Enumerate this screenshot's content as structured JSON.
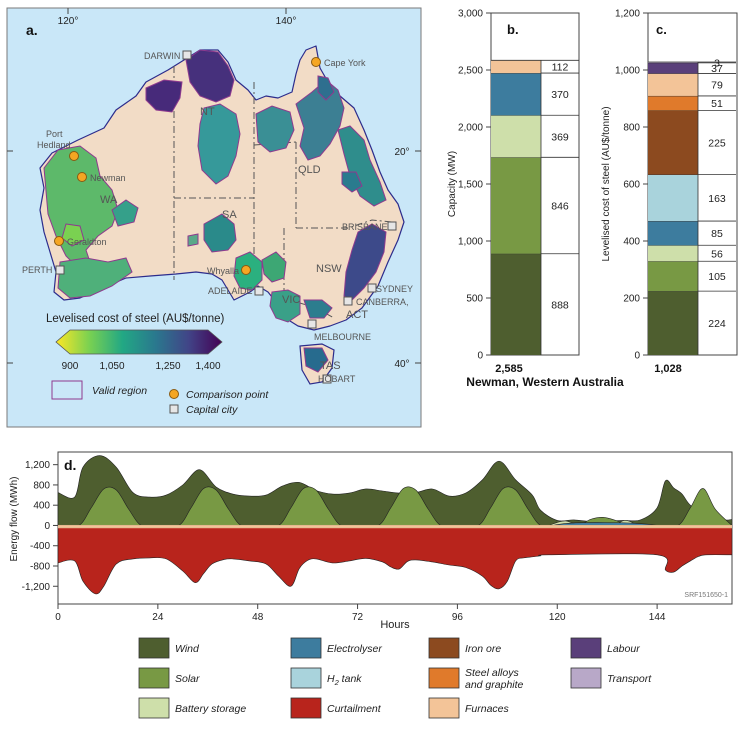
{
  "panels": {
    "a": "a.",
    "b": "b.",
    "c": "c.",
    "d": "d."
  },
  "map": {
    "lon_labels": [
      "120°",
      "140°"
    ],
    "lat_labels": [
      "20°",
      "40°"
    ],
    "region_labels": [
      "NT",
      "QLD",
      "WA",
      "SA",
      "NSW",
      "VIC",
      "TAS",
      "ACT"
    ],
    "cities": [
      "DARWIN",
      "BRISBANE",
      "PERTH",
      "ADELAIDE",
      "SYDNEY",
      "CANBERRA,",
      "MELBOURNE",
      "HOBART"
    ],
    "comparison_points": [
      "Cape York",
      "Port Hedland",
      "Newman",
      "Geraldton",
      "Whyalla"
    ],
    "colorbar": {
      "title": "Levelised cost of steel (AU$/tonne)",
      "ticks": [
        "900",
        "1,050",
        "1,250",
        "1,400"
      ],
      "stops": [
        "#fde725",
        "#7ad151",
        "#22a884",
        "#2a788e",
        "#414487",
        "#440154"
      ]
    },
    "legend": {
      "valid_region": "Valid region",
      "comparison_point": "Comparison point",
      "capital_city": "Capital city"
    },
    "colors": {
      "ocean": "#c9e7f8",
      "land": "#f2dcc6",
      "comparison": "#f5a623",
      "capital": "#e6e6e6"
    }
  },
  "chart_data": [
    {
      "type": "bar",
      "panel": "b",
      "stacked": true,
      "ylabel": "Capacity (MW)",
      "ylim": [
        0,
        3000
      ],
      "yticks": [
        "0",
        "500",
        "1,000",
        "1,500",
        "2,000",
        "2,500",
        "3,000"
      ],
      "total_label": "2,585",
      "segments": [
        {
          "component": "Wind",
          "value": 888,
          "label": "888",
          "color": "#4e5e2f"
        },
        {
          "component": "Solar",
          "value": 846,
          "label": "846",
          "color": "#789944"
        },
        {
          "component": "Battery storage",
          "value": 369,
          "label": "369",
          "color": "#cedfaa"
        },
        {
          "component": "Electrolyser",
          "value": 370,
          "label": "370",
          "color": "#3d7c9e"
        },
        {
          "component": "Furnaces",
          "value": 112,
          "label": "112",
          "color": "#f3c498"
        }
      ]
    },
    {
      "type": "bar",
      "panel": "c",
      "stacked": true,
      "ylabel": "Levelised cost of steel (AU$/tonne)",
      "ylim": [
        0,
        1200
      ],
      "yticks": [
        "0",
        "200",
        "400",
        "600",
        "800",
        "1,000",
        "1,200"
      ],
      "total_label": "1,028",
      "segments": [
        {
          "component": "Wind",
          "value": 224,
          "label": "224",
          "color": "#4e5e2f"
        },
        {
          "component": "Solar",
          "value": 105,
          "label": "105",
          "color": "#789944"
        },
        {
          "component": "Battery storage",
          "value": 56,
          "label": "56",
          "color": "#cedfaa"
        },
        {
          "component": "Electrolyser",
          "value": 85,
          "label": "85",
          "color": "#3d7c9e"
        },
        {
          "component": "H2 tank",
          "value": 163,
          "label": "163",
          "color": "#a9d3dc"
        },
        {
          "component": "Iron ore",
          "value": 225,
          "label": "225",
          "color": "#8c4a1f"
        },
        {
          "component": "Steel alloys and graphite",
          "value": 51,
          "label": "51",
          "color": "#e07a2b"
        },
        {
          "component": "Furnaces",
          "value": 79,
          "label": "79",
          "color": "#f3c498"
        },
        {
          "component": "Labour",
          "value": 37,
          "label": "37",
          "color": "#5a3f7a"
        },
        {
          "component": "Transport",
          "value": 3,
          "label": "3",
          "color": "#b8a8c8"
        }
      ]
    },
    {
      "type": "area",
      "panel": "d",
      "ylabel": "Energy flow (MWh)",
      "xlabel": "Hours",
      "xlim": [
        0,
        162
      ],
      "ylim": [
        -1550,
        1450
      ],
      "xticks": [
        "0",
        "24",
        "48",
        "72",
        "96",
        "120",
        "144"
      ],
      "yticks": [
        "-1,200",
        "-800",
        "-400",
        "0",
        "400",
        "800",
        "1,200"
      ],
      "series": [
        {
          "name": "Wind",
          "color": "#4e5e2f",
          "x": [
            0,
            4,
            6,
            10,
            14,
            18,
            22,
            26,
            30,
            34,
            38,
            42,
            46,
            50,
            54,
            58,
            62,
            66,
            70,
            74,
            78,
            82,
            86,
            90,
            94,
            98,
            102,
            106,
            110,
            114,
            116,
            120,
            124,
            128,
            132,
            136,
            140,
            144,
            146,
            148,
            150,
            152,
            156,
            160,
            162
          ],
          "y": [
            650,
            560,
            1150,
            1380,
            1150,
            650,
            560,
            600,
            800,
            1100,
            760,
            620,
            580,
            600,
            780,
            850,
            690,
            620,
            640,
            720,
            680,
            640,
            650,
            720,
            580,
            640,
            900,
            1270,
            900,
            600,
            300,
            100,
            110,
            80,
            90,
            100,
            110,
            350,
            880,
            740,
            620,
            400,
            200,
            110,
            120
          ]
        },
        {
          "name": "Solar",
          "color": "#789944",
          "x": [
            0,
            5,
            8,
            11,
            14,
            17,
            20,
            24,
            29,
            32,
            35,
            38,
            41,
            44,
            48,
            53,
            56,
            59,
            62,
            65,
            68,
            72,
            77,
            80,
            83,
            86,
            89,
            92,
            96,
            101,
            104,
            107,
            110,
            113,
            116,
            120,
            125,
            128,
            131,
            134,
            137,
            140,
            144,
            149,
            152,
            155,
            158,
            162
          ],
          "y": [
            0,
            0,
            350,
            720,
            700,
            320,
            0,
            0,
            0,
            350,
            730,
            700,
            320,
            0,
            0,
            0,
            350,
            730,
            700,
            320,
            0,
            0,
            0,
            350,
            730,
            700,
            320,
            0,
            0,
            0,
            350,
            730,
            700,
            320,
            0,
            0,
            0,
            120,
            160,
            100,
            0,
            0,
            0,
            0,
            350,
            730,
            320,
            0
          ]
        },
        {
          "name": "Battery storage",
          "color": "#cedfaa",
          "x": [
            118,
            120,
            122,
            124,
            126,
            128,
            130,
            132,
            134,
            136,
            138,
            140,
            142,
            144
          ],
          "y": [
            0,
            60,
            90,
            40,
            0,
            -80,
            -150,
            -120,
            0,
            100,
            60,
            -60,
            -100,
            0
          ]
        },
        {
          "name": "Electrolyser",
          "color": "#3d7c9e",
          "x": [
            0,
            118,
            119,
            144,
            146,
            150,
            152,
            162
          ],
          "y": [
            -560,
            -560,
            0,
            0,
            -380,
            -500,
            -380,
            -200
          ]
        },
        {
          "name": "Curtailment",
          "color": "#b8241c",
          "x": [
            0,
            4,
            6,
            9,
            11,
            14,
            18,
            22,
            26,
            30,
            33,
            35,
            37,
            40,
            42,
            46,
            50,
            53,
            56,
            58,
            60,
            62,
            66,
            70,
            74,
            78,
            80,
            82,
            84,
            86,
            90,
            94,
            98,
            102,
            104,
            106,
            108,
            110,
            112,
            114,
            116,
            118,
            144,
            146,
            148,
            150,
            152,
            154,
            156,
            162
          ],
          "y": [
            -740,
            -700,
            -1100,
            -1350,
            -1200,
            -760,
            -660,
            -640,
            -660,
            -900,
            -1130,
            -950,
            -760,
            -670,
            -660,
            -700,
            -760,
            -1000,
            -1200,
            -850,
            -690,
            -660,
            -740,
            -700,
            -650,
            -720,
            -820,
            -860,
            -710,
            -680,
            -720,
            -780,
            -830,
            -1000,
            -1180,
            -1250,
            -1100,
            -700,
            -640,
            -620,
            -600,
            -580,
            -580,
            -880,
            -920,
            -800,
            -700,
            -610,
            -580,
            -580
          ]
        },
        {
          "name": "Furnaces",
          "color": "#f3c498",
          "x": [
            0,
            162
          ],
          "y": [
            -40,
            -40
          ]
        }
      ],
      "note": "SRF151650-1"
    }
  ],
  "shared_x_label": "Newman, Western Australia",
  "legend": [
    {
      "label": "Wind",
      "color": "#4e5e2f"
    },
    {
      "label": "Electrolyser",
      "color": "#3d7c9e"
    },
    {
      "label": "Iron ore",
      "color": "#8c4a1f"
    },
    {
      "label": "Labour",
      "color": "#5a3f7a"
    },
    {
      "label": "Solar",
      "color": "#789944"
    },
    {
      "label": "H",
      "sub": "2",
      "tail": " tank",
      "color": "#a9d3dc"
    },
    {
      "label": "Steel alloys",
      "line2": "and graphite",
      "color": "#e07a2b"
    },
    {
      "label": "Transport",
      "color": "#b8a8c8"
    },
    {
      "label": "Battery storage",
      "color": "#cedfaa"
    },
    {
      "label": "Curtailment",
      "color": "#b8241c"
    },
    {
      "label": "Furnaces",
      "color": "#f3c498"
    }
  ]
}
